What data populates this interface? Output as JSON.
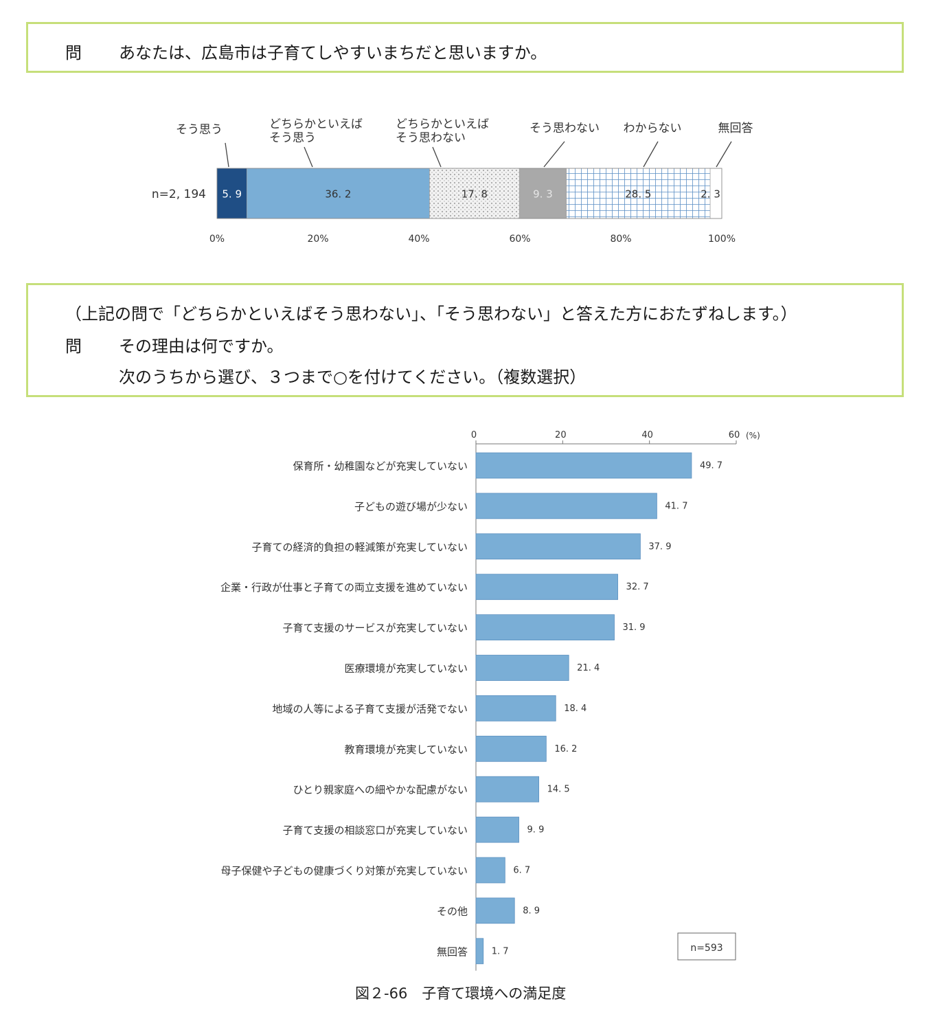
{
  "question1": {
    "mark": "問",
    "text": "あなたは、広島市は子育てしやすいまちだと思いますか。"
  },
  "question2": {
    "note": "（上記の問で「どちらかといえばそう思わない」、「そう思わない」と答えた方におたずねします。）",
    "mark": "問",
    "line1": "その理由は何ですか。",
    "line2": "次のうちから選び、３つまで○を付けてください。（複数選択）"
  },
  "caption": "図２-66　子育て環境への満足度",
  "chart_data": [
    {
      "type": "bar",
      "orientation": "horizontal-stacked",
      "row_label": "n=2, 194",
      "segments": [
        {
          "name": "そう思う",
          "value": 5.9,
          "label": "5. 9",
          "color": "#1f4e85",
          "pattern": "solid"
        },
        {
          "name": "どちらかといえば\nそう思う",
          "value": 36.2,
          "label": "36. 2",
          "color": "#7aaed6",
          "pattern": "solid"
        },
        {
          "name": "どちらかといえば\nそう思わない",
          "value": 17.8,
          "label": "17. 8",
          "color": "#e9e9e9",
          "pattern": "dots"
        },
        {
          "name": "そう思わない",
          "value": 9.3,
          "label": "9. 3",
          "color": "#a9a9a9",
          "pattern": "solid"
        },
        {
          "name": "わからない",
          "value": 28.5,
          "label": "28. 5",
          "color": "#ffffff",
          "pattern": "grid"
        },
        {
          "name": "無回答",
          "value": 2.3,
          "label": "2. 3",
          "color": "#ffffff",
          "pattern": "solid"
        }
      ],
      "xlim": [
        0,
        100
      ],
      "ticks": [
        "0%",
        "20%",
        "40%",
        "60%",
        "80%",
        "100%"
      ]
    },
    {
      "type": "bar",
      "orientation": "horizontal",
      "categories": [
        "保育所・幼稚園などが充実していない",
        "子どもの遊び場が少ない",
        "子育ての経済的負担の軽減策が充実していない",
        "企業・行政が仕事と子育ての両立支援を進めていない",
        "子育て支援のサービスが充実していない",
        "医療環境が充実していない",
        "地域の人等による子育て支援が活発でない",
        "教育環境が充実していない",
        "ひとり親家庭への細やかな配慮がない",
        "子育て支援の相談窓口が充実していない",
        "母子保健や子どもの健康づくり対策が充実していない",
        "その他",
        "無回答"
      ],
      "values": [
        49.7,
        41.7,
        37.9,
        32.7,
        31.9,
        21.4,
        18.4,
        16.2,
        14.5,
        9.9,
        6.7,
        8.9,
        1.7
      ],
      "value_labels": [
        "49. 7",
        "41. 7",
        "37. 9",
        "32. 7",
        "31. 9",
        "21. 4",
        "18. 4",
        "16. 2",
        "14. 5",
        "9. 9",
        "6. 7",
        "8. 9",
        "1. 7"
      ],
      "xlim": [
        0,
        60
      ],
      "ticks": [
        "0",
        "20",
        "40",
        "60"
      ],
      "unit": "(%)",
      "n_label": "n=593",
      "bar_color": "#7aaed6"
    }
  ]
}
